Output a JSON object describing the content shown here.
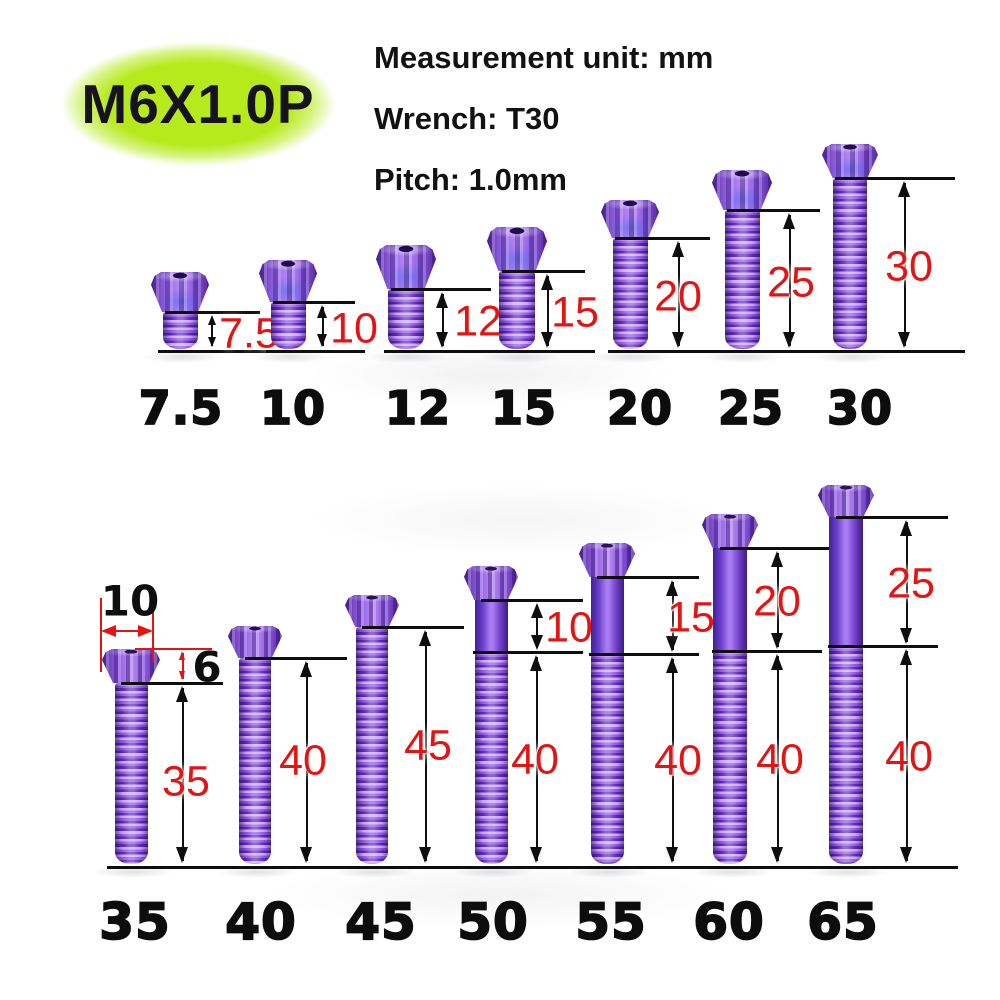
{
  "badge": {
    "text": "M6X1.0P"
  },
  "specs": {
    "measurement_unit": "Measurement unit: mm",
    "wrench": "Wrench: T30",
    "pitch": "Pitch: 1.0mm"
  },
  "unit": "mm",
  "top_row": {
    "bolts": [
      {
        "label": "7.5",
        "shaft_dim": "7.5"
      },
      {
        "label": "10",
        "shaft_dim": "10"
      },
      {
        "label": "12",
        "shaft_dim": "12"
      },
      {
        "label": "15",
        "shaft_dim": "15"
      },
      {
        "label": "20",
        "shaft_dim": "20"
      },
      {
        "label": "25",
        "shaft_dim": "25"
      },
      {
        "label": "30",
        "shaft_dim": "30"
      }
    ]
  },
  "bottom_row": {
    "bolts": [
      {
        "label": "35",
        "shaft_dim": "35",
        "head_width_dim": "10",
        "head_height_dim": "6"
      },
      {
        "label": "40",
        "shaft_dim": "40"
      },
      {
        "label": "45",
        "shaft_dim": "45"
      },
      {
        "label": "50",
        "shank_dim": "10",
        "shaft_dim": "40"
      },
      {
        "label": "55",
        "shank_dim": "15",
        "shaft_dim": "40"
      },
      {
        "label": "60",
        "shank_dim": "20",
        "shaft_dim": "40"
      },
      {
        "label": "65",
        "shank_dim": "25",
        "shaft_dim": "40"
      }
    ]
  },
  "colors": {
    "badge_green": "#b7ea1d",
    "dim_red": "#e31414",
    "text_black": "#0e0e0e",
    "bolt_purple": "#8a50e0",
    "bolt_blue_sheen": "#4e6cf0"
  }
}
